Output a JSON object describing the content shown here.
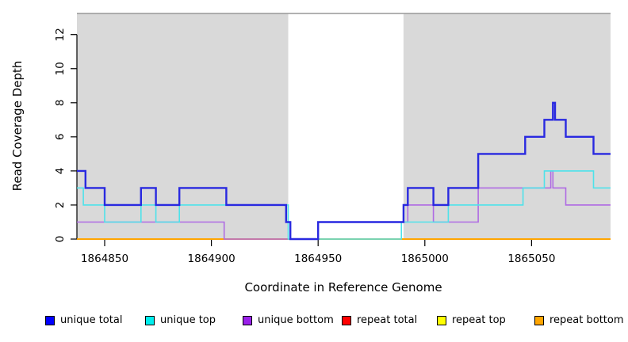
{
  "chart_data": {
    "type": "line",
    "subtype": "step-coverage-plot",
    "title": "",
    "xlabel": "Coordinate in Reference Genome",
    "ylabel": "Read Coverage Depth",
    "xlim": [
      1864837,
      1865087
    ],
    "ylim": [
      0,
      13.24
    ],
    "x_ticks": [
      1864850,
      1864900,
      1864950,
      1865000,
      1865050
    ],
    "y_ticks": [
      0,
      2,
      4,
      6,
      8,
      10,
      12
    ],
    "grid": false,
    "background_shading": {
      "color": "#d9d9d9",
      "regions": [
        [
          1864837,
          1864936
        ],
        [
          1864990,
          1865087
        ]
      ]
    },
    "gap_region": [
      1864936,
      1864990
    ],
    "top_border_color": "#999999",
    "axis_color": "#000000",
    "series": [
      {
        "name": "repeat total",
        "color": "#e02020",
        "width": 1.6,
        "end": 1865087,
        "points": [
          [
            1864837,
            0
          ]
        ]
      },
      {
        "name": "repeat top",
        "color": "#ffff00",
        "width": 1.6,
        "end": 1865087,
        "points": [
          [
            1864837,
            0
          ]
        ]
      },
      {
        "name": "repeat bottom",
        "color": "#ffa500",
        "width": 2.0,
        "end": 1865087,
        "points": [
          [
            1864837,
            0
          ]
        ]
      },
      {
        "name": "unique bottom",
        "color": "#af6be3",
        "width": 1.6,
        "end": 1865087,
        "points": [
          [
            1864837,
            1
          ],
          [
            1864906,
            0
          ],
          [
            1864950,
            1
          ],
          [
            1864992,
            2
          ],
          [
            1865004,
            1
          ],
          [
            1865025,
            3
          ],
          [
            1865059,
            4
          ],
          [
            1865060,
            3
          ],
          [
            1865066,
            2
          ]
        ]
      },
      {
        "name": "unique top",
        "color": "#4ee2ea",
        "width": 1.6,
        "end": 1865087,
        "points": [
          [
            1864837,
            3
          ],
          [
            1864840,
            2
          ],
          [
            1864850,
            1
          ],
          [
            1864867,
            2
          ],
          [
            1864874,
            1
          ],
          [
            1864885,
            2
          ],
          [
            1864936,
            0
          ],
          [
            1864989,
            1
          ],
          [
            1865011,
            2
          ],
          [
            1865046,
            3
          ],
          [
            1865056,
            4
          ],
          [
            1865079,
            3
          ]
        ]
      },
      {
        "name": "unique total",
        "color": "#2929e0",
        "width": 2.4,
        "end": 1865087,
        "points": [
          [
            1864837,
            4
          ],
          [
            1864841,
            3
          ],
          [
            1864850,
            2
          ],
          [
            1864867,
            3
          ],
          [
            1864874,
            2
          ],
          [
            1864885,
            3
          ],
          [
            1864907,
            2
          ],
          [
            1864935,
            1
          ],
          [
            1864937,
            0
          ],
          [
            1864950,
            1
          ],
          [
            1864990,
            2
          ],
          [
            1864992,
            3
          ],
          [
            1865004,
            2
          ],
          [
            1865011,
            3
          ],
          [
            1865025,
            5
          ],
          [
            1865047,
            6
          ],
          [
            1865056,
            7
          ],
          [
            1865060,
            8
          ],
          [
            1865061,
            7
          ],
          [
            1865066,
            6
          ],
          [
            1865079,
            5
          ]
        ]
      }
    ],
    "legend": [
      {
        "label": "unique total",
        "color": "#0000ff"
      },
      {
        "label": "unique top",
        "color": "#00eeee"
      },
      {
        "label": "unique bottom",
        "color": "#9a20ea"
      },
      {
        "label": "repeat total",
        "color": "#ff0000"
      },
      {
        "label": "repeat top",
        "color": "#ffff00"
      },
      {
        "label": "repeat bottom",
        "color": "#ffa500"
      }
    ],
    "legend_position": "bottom"
  }
}
